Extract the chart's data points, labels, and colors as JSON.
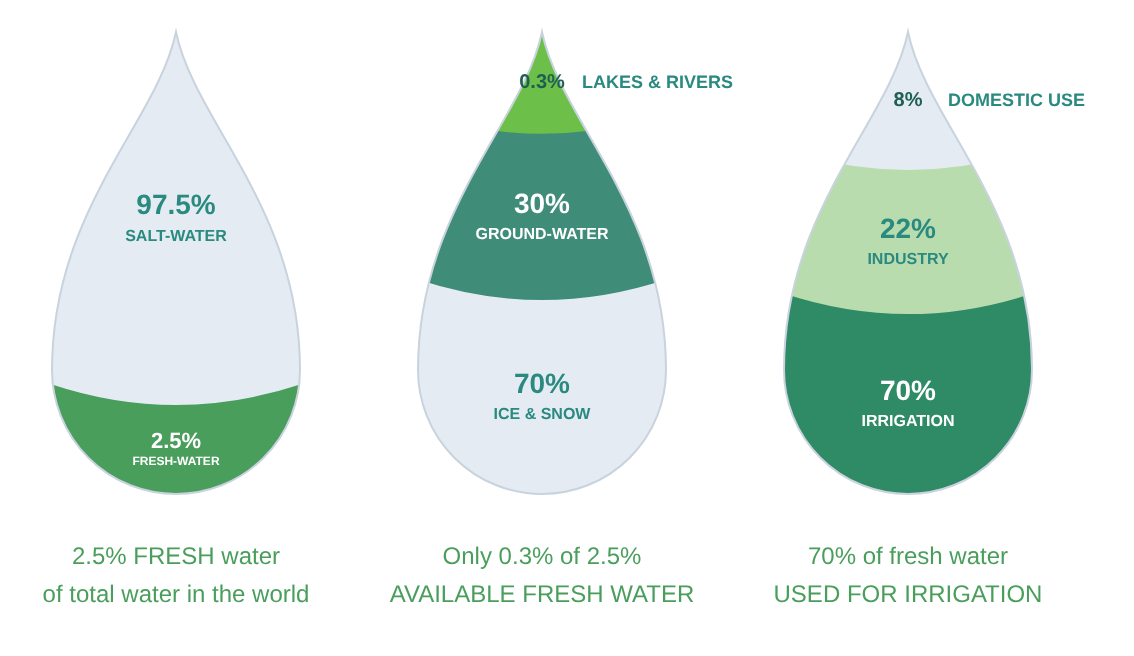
{
  "chart_data": [
    {
      "type": "other",
      "categories": [
        "SALT-WATER",
        "FRESH-WATER"
      ],
      "values": [
        97.5,
        2.5
      ],
      "value_labels": [
        "97.5%",
        "2.5%"
      ],
      "colors": [
        "#e4ebf3",
        "#4a9e5c"
      ],
      "annotations": [
        "2.5% FRESH water",
        "of total water in the world"
      ]
    },
    {
      "type": "other",
      "categories": [
        "LAKES & RIVERS",
        "GROUND-WATER",
        "ICE & SNOW"
      ],
      "values": [
        0.3,
        30,
        70
      ],
      "value_labels": [
        "0.3%",
        "30%",
        "70%"
      ],
      "colors": [
        "#6cc04a",
        "#3f8c78",
        "#e4ebf3"
      ],
      "annotations": [
        "Only 0.3% of 2.5%",
        "AVAILABLE FRESH WATER"
      ]
    },
    {
      "type": "other",
      "categories": [
        "DOMESTIC USE",
        "INDUSTRY",
        "IRRIGATION"
      ],
      "values": [
        8,
        22,
        70
      ],
      "value_labels": [
        "8%",
        "22%",
        "70%"
      ],
      "colors": [
        "#e4ebf3",
        "#b8dcae",
        "#2f8a66"
      ],
      "annotations": [
        "70% of fresh water",
        "USED FOR IRRIGATION"
      ]
    }
  ]
}
